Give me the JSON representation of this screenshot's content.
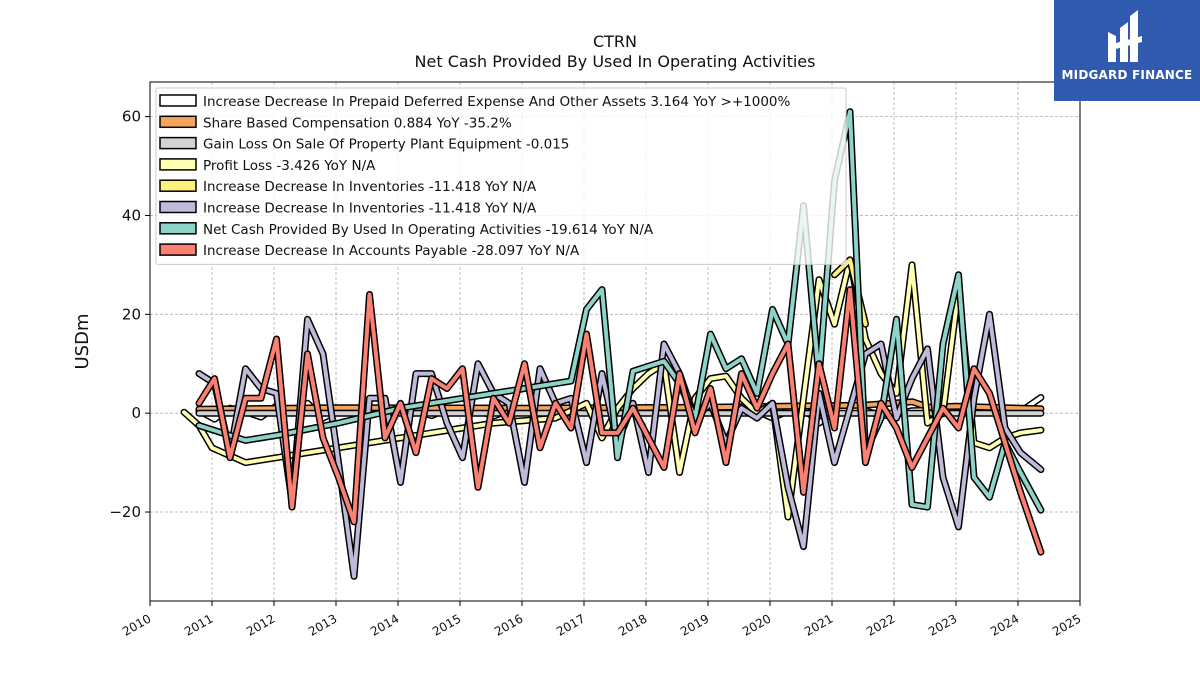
{
  "title": "CTRN",
  "subtitle": "Net Cash Provided By Used In Operating Activities",
  "brand": {
    "name": "MIDGARD FINANCE",
    "color": "#2f5aae"
  },
  "chart_data": {
    "type": "line",
    "ylabel": "USDm",
    "xlabel": "",
    "xlim": [
      2010.0,
      2025.0
    ],
    "ylim": [
      -38,
      67
    ],
    "x_ticks": [
      "2010",
      "2011",
      "2012",
      "2013",
      "2014",
      "2015",
      "2016",
      "2017",
      "2018",
      "2019",
      "2020",
      "2021",
      "2022",
      "2023",
      "2024",
      "2025"
    ],
    "y_ticks": [
      -20,
      0,
      20,
      40,
      60
    ],
    "y_tick_labels": [
      "−20",
      "0",
      "20",
      "40",
      "60"
    ],
    "grid": true,
    "legend_position": "top-left",
    "series": [
      {
        "name": "Increase Decrease In Prepaid Deferred Expense And Other Assets",
        "legend_label": "Increase Decrease In Prepaid Deferred Expense And Other Assets  3.164 YoY >+1000%",
        "color": "#ffffff",
        "x": [
          2010.79,
          2011.04,
          2011.29,
          2011.54,
          2011.79,
          2012.04,
          2012.29,
          2012.54,
          2012.79,
          2013.04,
          2013.29,
          2013.54,
          2013.79,
          2014.04,
          2014.29,
          2014.54,
          2014.79,
          2015.04,
          2015.29,
          2015.54,
          2015.79,
          2016.04,
          2016.29,
          2016.54,
          2016.79,
          2017.04,
          2017.29,
          2017.54,
          2017.79,
          2018.04,
          2018.29,
          2018.54,
          2018.79,
          2019.04,
          2019.29,
          2019.54,
          2019.79,
          2020.04,
          2020.29,
          2020.54,
          2020.79,
          2021.04,
          2021.29,
          2021.54,
          2021.79,
          2022.04,
          2022.29,
          2022.54,
          2022.79,
          2023.04,
          2023.29,
          2023.54,
          2023.79,
          2024.04,
          2024.37
        ],
        "values": [
          0.5,
          -1.2,
          1.0,
          0.3,
          -0.8,
          1.5,
          0.2,
          2.0,
          -1.0,
          0.6,
          0.4,
          -0.3,
          0.2,
          1.0,
          0.5,
          -0.5,
          0.8,
          0.6,
          0.5,
          -0.6,
          0.6,
          0.4,
          0.3,
          -0.2,
          0.3,
          0.5,
          0.6,
          1.0,
          0.2,
          0.5,
          0.8,
          0.5,
          0.3,
          0.7,
          0.5,
          1.0,
          0.4,
          -1.0,
          0.5,
          1.0,
          -2.0,
          0.6,
          0.8,
          0.5,
          -0.5,
          -0.3,
          0.5,
          0.6,
          0.5,
          0.3,
          0.5,
          0.8,
          0.4,
          0.3,
          3.164
        ]
      },
      {
        "name": "Share Based Compensation",
        "legend_label": "Share Based Compensation  0.884 YoY -35.2%",
        "color": "#f5a45d",
        "x": [
          2010.79,
          2013.0,
          2016.0,
          2019.0,
          2021.5,
          2022.3,
          2022.55,
          2023.0,
          2024.37
        ],
        "values": [
          0.8,
          1.1,
          1.0,
          1.2,
          1.6,
          2.3,
          1.2,
          1.4,
          0.884
        ]
      },
      {
        "name": "Gain Loss On Sale Of Property Plant Equipment",
        "legend_label": "Gain Loss On Sale Of Property Plant Equipment  -0.015",
        "color": "#d3d3d3",
        "x": [
          2010.79,
          2012.0,
          2016.0,
          2020.0,
          2024.37
        ],
        "values": [
          0.0,
          0.0,
          0.0,
          0.0,
          -0.015
        ]
      },
      {
        "name": "Profit Loss",
        "legend_label": "Profit Loss  -3.426 YoY N/A",
        "color": "#ffffb3",
        "x": [
          2010.55,
          2010.79,
          2011.0,
          2011.54,
          2012.04,
          2012.54,
          2013.04,
          2013.54,
          2014.04,
          2014.54,
          2015.04,
          2015.54,
          2016.04,
          2016.54,
          2017.04,
          2017.29,
          2017.54,
          2017.79,
          2018.04,
          2018.29,
          2018.54,
          2018.79,
          2019.04,
          2019.29,
          2019.54,
          2019.79,
          2020.04,
          2020.29,
          2020.54,
          2020.79,
          2021.04,
          2021.29,
          2021.54,
          2021.79,
          2022.04,
          2022.29,
          2022.54,
          2022.79,
          2023.04,
          2023.29,
          2023.54,
          2023.79,
          2024.04,
          2024.37
        ],
        "values": [
          0.2,
          -2.5,
          -7.0,
          -10.0,
          -9.0,
          -8.0,
          -7.0,
          -6.0,
          -5.0,
          -4.0,
          -3.0,
          -2.0,
          -1.5,
          -1.0,
          2.0,
          -5.0,
          1.0,
          5.0,
          8.0,
          10.0,
          -12.0,
          3.0,
          7.0,
          7.5,
          3.0,
          0.0,
          2.0,
          -21.0,
          3.0,
          27.0,
          18.0,
          31.0,
          15.0,
          8.0,
          4.0,
          30.0,
          -2.0,
          0.0,
          25.0,
          -6.0,
          -7.0,
          -5.0,
          -4.0,
          -3.426
        ]
      },
      {
        "name": "Increase Decrease In Inventories",
        "legend_label": "Increase Decrease In Inventories  -11.418 YoY N/A",
        "color": "#fff17a",
        "x": [
          2021.04,
          2021.29,
          2021.54
        ],
        "values": [
          28.0,
          31.0,
          18.0
        ]
      },
      {
        "name": "Increase Decrease In Inventories",
        "legend_label": "Increase Decrease In Inventories  -11.418 YoY N/A",
        "color": "#bebada",
        "x": [
          2010.79,
          2011.04,
          2011.29,
          2011.54,
          2011.79,
          2012.04,
          2012.29,
          2012.54,
          2012.79,
          2013.04,
          2013.29,
          2013.54,
          2013.79,
          2014.04,
          2014.29,
          2014.54,
          2014.79,
          2015.04,
          2015.29,
          2015.54,
          2015.79,
          2016.04,
          2016.29,
          2016.54,
          2016.79,
          2017.04,
          2017.29,
          2017.54,
          2017.79,
          2018.04,
          2018.29,
          2018.54,
          2018.79,
          2019.04,
          2019.29,
          2019.54,
          2019.79,
          2020.04,
          2020.29,
          2020.54,
          2020.79,
          2021.04,
          2021.29,
          2021.54,
          2021.79,
          2022.04,
          2022.29,
          2022.54,
          2022.79,
          2023.04,
          2023.29,
          2023.54,
          2023.79,
          2024.04,
          2024.37
        ],
        "values": [
          8.0,
          6.0,
          -8.0,
          9.0,
          5.0,
          4.0,
          -18.0,
          19.0,
          12.0,
          -10.0,
          -33.0,
          3.0,
          3.0,
          -14.0,
          8.0,
          8.0,
          -2.0,
          -9.0,
          10.0,
          4.0,
          2.0,
          -14.0,
          9.0,
          2.0,
          3.0,
          -10.0,
          8.0,
          -6.0,
          2.0,
          -12.0,
          14.0,
          8.0,
          -1.0,
          2.0,
          -6.0,
          1.0,
          -1.0,
          2.0,
          -15.0,
          -27.0,
          4.0,
          -10.0,
          1.0,
          12.0,
          14.0,
          -1.0,
          7.0,
          13.0,
          -13.0,
          -23.0,
          3.0,
          20.0,
          -3.0,
          -8.0,
          -11.418
        ]
      },
      {
        "name": "Net Cash Provided By Used In Operating Activities",
        "legend_label": "Net Cash Provided By Used In Operating Activities  -19.614 YoY N/A",
        "color": "#8dd3c7",
        "x": [
          2010.79,
          2011.54,
          2012.04,
          2013.04,
          2014.04,
          2015.04,
          2016.04,
          2016.79,
          2017.04,
          2017.29,
          2017.54,
          2017.79,
          2018.04,
          2018.29,
          2018.54,
          2018.79,
          2019.04,
          2019.29,
          2019.54,
          2019.79,
          2020.04,
          2020.29,
          2020.54,
          2020.79,
          2021.04,
          2021.29,
          2021.54,
          2021.79,
          2022.04,
          2022.29,
          2022.54,
          2022.79,
          2023.04,
          2023.29,
          2023.54,
          2023.79,
          2024.04,
          2024.37
        ],
        "values": [
          -2.5,
          -5.5,
          -4.5,
          -2.0,
          1.0,
          3.0,
          5.0,
          6.5,
          21.0,
          25.0,
          -9.0,
          8.5,
          9.5,
          10.5,
          6.0,
          -1.0,
          16.0,
          9.0,
          11.0,
          4.0,
          21.0,
          14.0,
          42.0,
          7.0,
          47.0,
          61.0,
          -8.0,
          -1.0,
          19.0,
          -18.5,
          -19.0,
          14.0,
          28.0,
          -13.0,
          -17.0,
          -6.0,
          -12.0,
          -19.614
        ]
      },
      {
        "name": "Increase Decrease In Accounts Payable",
        "legend_label": "Increase Decrease In Accounts Payable  -28.097 YoY N/A",
        "color": "#fb8072",
        "x": [
          2010.79,
          2011.04,
          2011.29,
          2011.54,
          2011.79,
          2012.04,
          2012.29,
          2012.54,
          2012.79,
          2013.04,
          2013.29,
          2013.54,
          2013.79,
          2014.04,
          2014.29,
          2014.54,
          2014.79,
          2015.04,
          2015.29,
          2015.54,
          2015.79,
          2016.04,
          2016.29,
          2016.54,
          2016.79,
          2017.04,
          2017.29,
          2017.54,
          2017.79,
          2018.04,
          2018.29,
          2018.54,
          2018.79,
          2019.04,
          2019.29,
          2019.54,
          2019.79,
          2020.04,
          2020.29,
          2020.54,
          2020.79,
          2021.04,
          2021.29,
          2021.54,
          2021.79,
          2022.04,
          2022.29,
          2022.54,
          2022.79,
          2023.04,
          2023.29,
          2023.54,
          2023.79,
          2024.04,
          2024.37
        ],
        "values": [
          2.0,
          7.0,
          -9.0,
          3.0,
          3.0,
          15.0,
          -19.0,
          12.0,
          -5.0,
          -13.0,
          -22.0,
          24.0,
          -5.0,
          2.0,
          -8.0,
          7.0,
          5.0,
          9.0,
          -15.0,
          3.0,
          -2.0,
          10.0,
          -7.0,
          2.0,
          -3.0,
          16.0,
          -4.0,
          -4.0,
          1.0,
          -5.0,
          -11.0,
          8.0,
          -4.0,
          5.0,
          -10.0,
          8.0,
          1.0,
          8.0,
          14.0,
          -16.0,
          10.0,
          -3.0,
          25.0,
          -10.0,
          2.0,
          -3.0,
          -11.0,
          -5.0,
          1.0,
          -3.0,
          9.0,
          4.0,
          -6.0,
          -16.0,
          -28.097
        ]
      }
    ]
  }
}
